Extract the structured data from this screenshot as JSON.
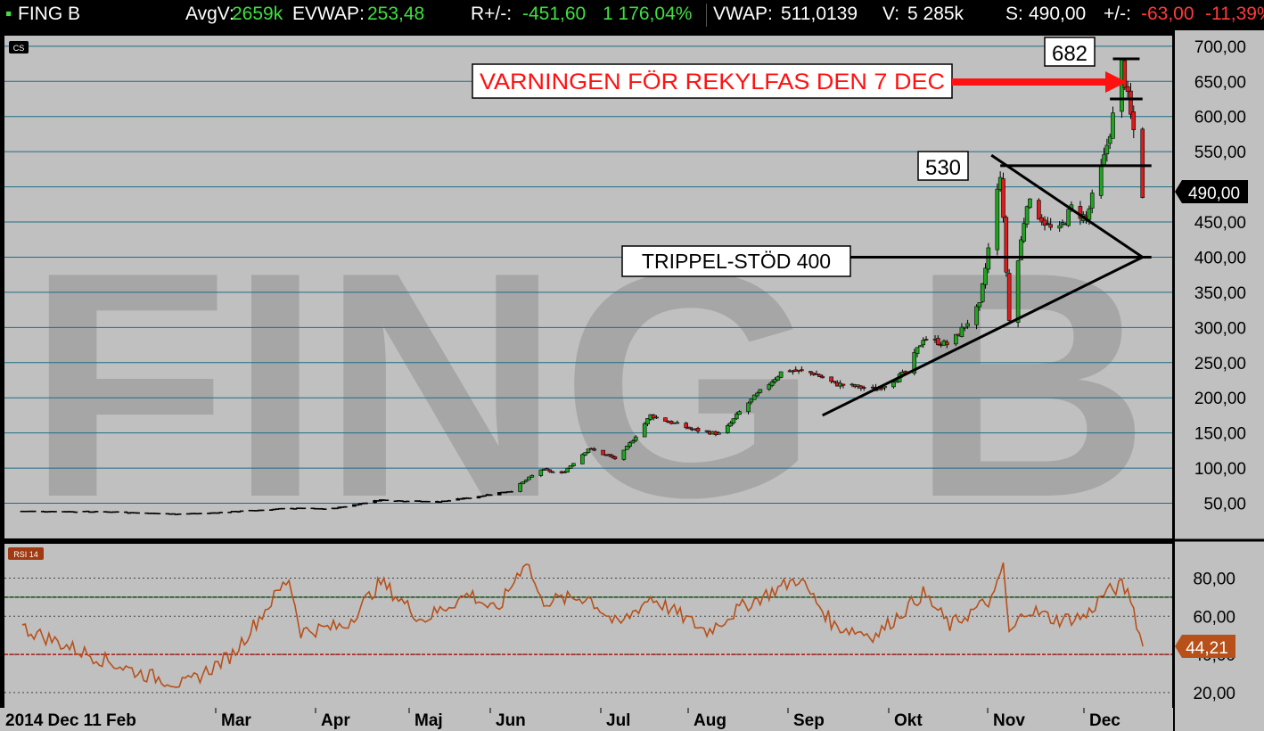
{
  "header": {
    "ticker": "FING B",
    "avgv_label": "AvgV:",
    "avgv_value": "2659k",
    "evwap_label": "EVWAP:",
    "evwap_value": "253,48",
    "rpm_label": "R+/-:",
    "rpm_value": "-451,60",
    "rpm_pct": "1 176,04%",
    "vwap_label": "VWAP:",
    "vwap_value": "511,0139",
    "v_label": "V:",
    "v_value": "5 285k",
    "s_label": "S:",
    "s_value": "490,00",
    "pm_label": "+/-:",
    "pm_value": "-63,00",
    "pm_pct": "-11,39%"
  },
  "watermark": "FING B",
  "price_panel_tag": "CS",
  "rsi_panel_tag": "RSI 14",
  "price_tag": "490,00",
  "rsi_tag": "44,21",
  "colors": {
    "background": "#c0c0c0",
    "gridline": "#1e6e86",
    "up_candle": "#1fa51f",
    "down_candle": "#e01a1a",
    "rsi_line": "#b8501a",
    "overbought_line": "#10901a",
    "oversold_line": "#b01818",
    "watermark": "#a6a6a6",
    "annotation_arrow": "#ff1111"
  },
  "annotations": {
    "high_label": "682",
    "warning_label": "VARNINGEN FÖR REKYLFAS DEN 7 DEC",
    "resistance_label": "530",
    "support_label": "TRIPPEL-STÖD 400"
  },
  "chart_data": {
    "type": "candlestick",
    "price_axis": {
      "ylim": [
        0,
        715
      ],
      "tick_values": [
        50,
        100,
        150,
        200,
        250,
        300,
        350,
        400,
        450,
        500,
        550,
        600,
        650,
        700
      ],
      "tick_labels": [
        "50,00",
        "100,00",
        "150,00",
        "200,00",
        "250,00",
        "300,00",
        "350,00",
        "400,00",
        "450,00",
        "500,00",
        "550,00",
        "600,00",
        "650,00",
        "700,00"
      ]
    },
    "rsi_axis": {
      "ylim": [
        12,
        98
      ],
      "tick_values": [
        20,
        40,
        60,
        80
      ],
      "tick_labels": [
        "20,00",
        "40,00",
        "60,00",
        "80,00"
      ],
      "overbought": 70,
      "oversold": 40
    },
    "x_axis_labels": [
      "2014 Dec 11 Feb",
      "Mar",
      "Apr",
      "Maj",
      "Jun",
      "Jul",
      "Aug",
      "Sep",
      "Okt",
      "Nov",
      "Dec"
    ],
    "grid": true,
    "price_series": {
      "name": "FING B",
      "points": [
        {
          "date": "2014-12-01",
          "close": 39
        },
        {
          "date": "2015-01-01",
          "close": 38
        },
        {
          "date": "2015-01-20",
          "close": 35
        },
        {
          "date": "2015-02-01",
          "close": 36
        },
        {
          "date": "2015-03-01",
          "close": 43
        },
        {
          "date": "2015-03-15",
          "close": 42
        },
        {
          "date": "2015-04-01",
          "close": 55
        },
        {
          "date": "2015-04-20",
          "close": 52
        },
        {
          "date": "2015-05-01",
          "close": 58
        },
        {
          "date": "2015-05-15",
          "close": 68
        },
        {
          "date": "2015-05-25",
          "close": 98
        },
        {
          "date": "2015-06-01",
          "close": 92
        },
        {
          "date": "2015-06-10",
          "close": 128
        },
        {
          "date": "2015-06-20",
          "close": 112
        },
        {
          "date": "2015-07-01",
          "close": 175
        },
        {
          "date": "2015-07-15",
          "close": 155
        },
        {
          "date": "2015-07-25",
          "close": 148
        },
        {
          "date": "2015-08-01",
          "close": 185
        },
        {
          "date": "2015-08-15",
          "close": 240
        },
        {
          "date": "2015-08-25",
          "close": 235
        },
        {
          "date": "2015-09-01",
          "close": 220
        },
        {
          "date": "2015-09-15",
          "close": 212
        },
        {
          "date": "2015-09-25",
          "close": 235
        },
        {
          "date": "2015-10-01",
          "close": 285
        },
        {
          "date": "2015-10-10",
          "close": 275
        },
        {
          "date": "2015-10-20",
          "close": 330
        },
        {
          "date": "2015-10-27",
          "close": 520
        },
        {
          "date": "2015-10-30",
          "close": 310
        },
        {
          "date": "2015-11-05",
          "close": 480
        },
        {
          "date": "2015-11-15",
          "close": 430
        },
        {
          "date": "2015-11-20",
          "close": 470
        },
        {
          "date": "2015-11-25",
          "close": 455
        },
        {
          "date": "2015-12-01",
          "close": 540
        },
        {
          "date": "2015-12-05",
          "close": 620
        },
        {
          "date": "2015-12-07",
          "close": 675
        },
        {
          "date": "2015-12-10",
          "close": 600
        },
        {
          "date": "2015-12-12",
          "close": 560
        },
        {
          "date": "2015-12-14",
          "close": 490
        }
      ]
    },
    "rsi_series": {
      "name": "RSI 14",
      "points": [
        {
          "date": "2014-12-01",
          "value": 54
        },
        {
          "date": "2014-12-20",
          "value": 42
        },
        {
          "date": "2015-01-10",
          "value": 30
        },
        {
          "date": "2015-01-25",
          "value": 24
        },
        {
          "date": "2015-02-10",
          "value": 40
        },
        {
          "date": "2015-02-25",
          "value": 72
        },
        {
          "date": "2015-03-01",
          "value": 80
        },
        {
          "date": "2015-03-05",
          "value": 52
        },
        {
          "date": "2015-03-20",
          "value": 55
        },
        {
          "date": "2015-04-01",
          "value": 78
        },
        {
          "date": "2015-04-15",
          "value": 58
        },
        {
          "date": "2015-05-01",
          "value": 72
        },
        {
          "date": "2015-05-10",
          "value": 62
        },
        {
          "date": "2015-05-20",
          "value": 90
        },
        {
          "date": "2015-05-25",
          "value": 68
        },
        {
          "date": "2015-06-10",
          "value": 70
        },
        {
          "date": "2015-06-20",
          "value": 55
        },
        {
          "date": "2015-07-01",
          "value": 70
        },
        {
          "date": "2015-07-20",
          "value": 52
        },
        {
          "date": "2015-08-01",
          "value": 65
        },
        {
          "date": "2015-08-20",
          "value": 80
        },
        {
          "date": "2015-09-01",
          "value": 55
        },
        {
          "date": "2015-09-15",
          "value": 50
        },
        {
          "date": "2015-10-01",
          "value": 72
        },
        {
          "date": "2015-10-10",
          "value": 55
        },
        {
          "date": "2015-10-25",
          "value": 70
        },
        {
          "date": "2015-10-28",
          "value": 88
        },
        {
          "date": "2015-10-30",
          "value": 50
        },
        {
          "date": "2015-11-05",
          "value": 64
        },
        {
          "date": "2015-11-15",
          "value": 58
        },
        {
          "date": "2015-11-25",
          "value": 60
        },
        {
          "date": "2015-12-01",
          "value": 72
        },
        {
          "date": "2015-12-07",
          "value": 76
        },
        {
          "date": "2015-12-10",
          "value": 70
        },
        {
          "date": "2015-12-14",
          "value": 44.21
        }
      ]
    },
    "trendlines": [
      {
        "name": "rising-support",
        "from": {
          "date": "2015-08-28",
          "price": 175
        },
        "to": {
          "date": "2015-12-14",
          "price": 400
        }
      },
      {
        "name": "falling-resistance",
        "from": {
          "date": "2015-10-24",
          "price": 545
        },
        "to": {
          "date": "2015-12-14",
          "price": 400
        }
      },
      {
        "name": "triple-support",
        "from": {
          "date": "2015-09-01",
          "price": 400
        },
        "to": {
          "date": "2015-12-17",
          "price": 400
        }
      },
      {
        "name": "resistance-530",
        "from": {
          "date": "2015-10-27",
          "price": 530
        },
        "to": {
          "date": "2015-12-17",
          "price": 530
        }
      }
    ]
  }
}
